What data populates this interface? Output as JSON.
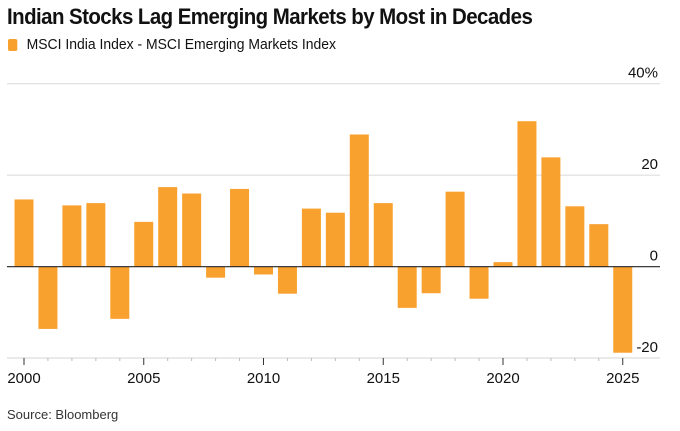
{
  "title": "Indian Stocks Lag Emerging Markets by Most in Decades",
  "legend": [
    {
      "label": "MSCI India Index - MSCI Emerging Markets Index",
      "color": "#F9A12E"
    }
  ],
  "source": "Source: Bloomberg",
  "chart_data": {
    "type": "bar",
    "title": "Indian Stocks Lag Emerging Markets by Most in Decades",
    "xlabel": "",
    "ylabel": "",
    "series": [
      {
        "name": "MSCI India Index - MSCI Emerging Markets Index",
        "color": "#F9A12E",
        "values": [
          14.7,
          -13.6,
          13.4,
          13.9,
          -11.4,
          9.8,
          17.4,
          16.0,
          -2.4,
          17.0,
          -1.7,
          -5.9,
          12.7,
          11.8,
          28.9,
          13.9,
          -9.0,
          -5.8,
          16.4,
          -7.0,
          1.0,
          31.8,
          23.9,
          13.2,
          9.3,
          -18.8
        ]
      }
    ],
    "categories": [
      "2000",
      "2001",
      "2002",
      "2003",
      "2004",
      "2005",
      "2006",
      "2007",
      "2008",
      "2009",
      "2010",
      "2011",
      "2012",
      "2013",
      "2014",
      "2015",
      "2016",
      "2017",
      "2018",
      "2019",
      "2020",
      "2021",
      "2022",
      "2023",
      "2024",
      "2025"
    ],
    "x_tick_labels": [
      "2000",
      "2005",
      "2010",
      "2015",
      "2020",
      "2025"
    ],
    "y_ticks": [
      40,
      20,
      0,
      -20
    ],
    "y_tick_labels": [
      "40%",
      "20",
      "0",
      "-20"
    ],
    "ylim": [
      -20,
      40
    ],
    "grid": true,
    "legend_position": "top-left",
    "y_axis_side": "right"
  }
}
